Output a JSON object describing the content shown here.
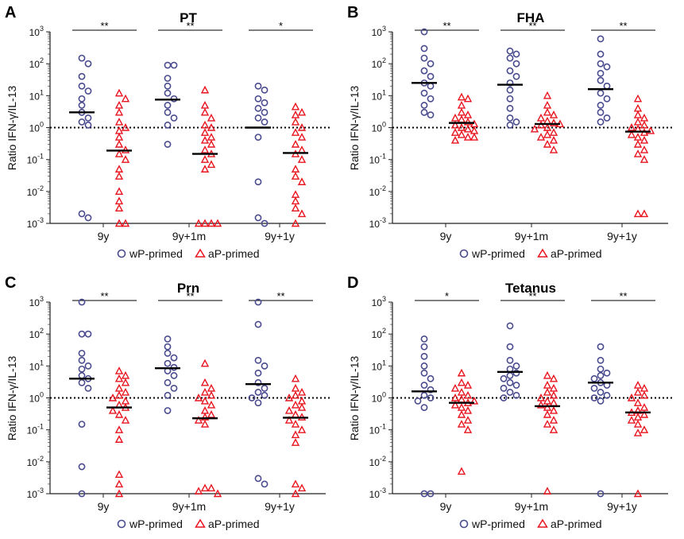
{
  "figure": {
    "y_label": "Ratio IFN-γ/IL-13",
    "legend": {
      "wp_label": "wP-primed",
      "ap_label": "aP-primed"
    },
    "colors": {
      "wp": "#4a4b8e",
      "ap": "#e8141f",
      "median": "#000000",
      "axis": "#222222"
    },
    "y_ticks": [
      {
        "base": "10",
        "exp": "3"
      },
      {
        "base": "10",
        "exp": "2"
      },
      {
        "base": "10",
        "exp": "1"
      },
      {
        "base": "10",
        "exp": "0"
      },
      {
        "base": "10",
        "exp": "-1"
      },
      {
        "base": "10",
        "exp": "-2"
      },
      {
        "base": "10",
        "exp": "-3"
      }
    ]
  },
  "chart_data": [
    {
      "type": "scatter",
      "panel_letter": "A",
      "title": "PT",
      "ylabel": "Ratio IFN-γ/IL-13",
      "yscale": "log",
      "ylim": [
        0.001,
        1000
      ],
      "reference_line": 1,
      "categories": [
        "9y",
        "9y+1m",
        "9y+1y"
      ],
      "significance": [
        "**",
        "**",
        "*"
      ],
      "series": [
        {
          "name": "wP-primed",
          "medians": [
            3.0,
            7.5,
            1.0
          ],
          "points": [
            [
              150,
              100,
              40,
              20,
              14,
              8,
              5,
              3,
              2,
              1.5,
              1.2,
              0.002,
              0.0015
            ],
            [
              90,
              90,
              35,
              20,
              12,
              8,
              5,
              3,
              2,
              1.2,
              0.3
            ],
            [
              20,
              15,
              8,
              6,
              4,
              3,
              2,
              1.5,
              0.5,
              0.02,
              0.0015,
              0.001
            ]
          ]
        },
        {
          "name": "aP-primed",
          "medians": [
            0.19,
            0.15,
            0.16
          ],
          "points": [
            [
              12,
              8,
              5,
              3,
              1.5,
              1,
              0.8,
              0.5,
              0.3,
              0.2,
              0.15,
              0.1,
              0.05,
              0.03,
              0.01,
              0.005,
              0.003,
              0.001,
              0.001
            ],
            [
              15,
              5,
              3,
              2,
              1.2,
              1,
              0.7,
              0.5,
              0.4,
              0.3,
              0.2,
              0.15,
              0.1,
              0.07,
              0.05,
              0.001,
              0.001,
              0.001,
              0.001
            ],
            [
              4.5,
              3,
              2.5,
              1.5,
              1,
              0.7,
              0.5,
              0.3,
              0.2,
              0.15,
              0.1,
              0.05,
              0.03,
              0.02,
              0.008,
              0.005,
              0.003,
              0.002,
              0.001
            ]
          ]
        }
      ]
    },
    {
      "type": "scatter",
      "panel_letter": "B",
      "title": "FHA",
      "ylabel": "Ratio IFN-γ/IL-13",
      "yscale": "log",
      "ylim": [
        0.001,
        1000
      ],
      "reference_line": 1,
      "categories": [
        "9y",
        "9y+1m",
        "9y+1y"
      ],
      "significance": [
        "**",
        "**",
        "**"
      ],
      "series": [
        {
          "name": "wP-primed",
          "medians": [
            25,
            22,
            16
          ],
          "points": [
            [
              1000,
              300,
              150,
              100,
              60,
              40,
              25,
              20,
              12,
              8,
              5,
              3,
              2.5
            ],
            [
              250,
              200,
              150,
              100,
              60,
              40,
              25,
              15,
              8,
              4,
              2,
              1.5,
              1.2
            ],
            [
              600,
              200,
              100,
              80,
              50,
              30,
              20,
              12,
              8,
              5,
              3,
              2,
              1.5
            ]
          ]
        },
        {
          "name": "aP-primed",
          "medians": [
            1.4,
            1.3,
            0.75
          ],
          "points": [
            [
              9,
              8,
              5,
              3,
              2.5,
              2,
              1.8,
              1.5,
              1.3,
              1.2,
              1,
              0.9,
              0.8,
              0.7,
              0.6,
              0.5,
              0.5,
              0.4
            ],
            [
              10,
              5,
              3,
              2.5,
              2,
              1.6,
              1.4,
              1.3,
              1.2,
              1,
              0.9,
              0.7,
              0.6,
              0.5,
              0.4,
              0.3,
              0.2
            ],
            [
              8,
              4,
              2.5,
              2,
              1.5,
              1.2,
              1,
              0.9,
              0.8,
              0.7,
              0.6,
              0.5,
              0.4,
              0.3,
              0.2,
              0.15,
              0.1,
              0.002,
              0.002
            ]
          ]
        }
      ]
    },
    {
      "type": "scatter",
      "panel_letter": "C",
      "title": "Prn",
      "ylabel": "Ratio IFN-γ/IL-13",
      "yscale": "log",
      "ylim": [
        0.001,
        1000
      ],
      "reference_line": 1,
      "categories": [
        "9y",
        "9y+1m",
        "9y+1y"
      ],
      "significance": [
        "**",
        "**",
        "**"
      ],
      "series": [
        {
          "name": "wP-primed",
          "medians": [
            4.0,
            8.5,
            2.7
          ],
          "points": [
            [
              1000,
              100,
              100,
              25,
              15,
              10,
              8,
              5,
              4,
              3,
              2,
              0.15,
              0.007,
              0.001
            ],
            [
              70,
              40,
              25,
              18,
              12,
              9,
              7,
              5,
              3,
              2,
              1.2,
              0.4
            ],
            [
              1000,
              200,
              15,
              10,
              6,
              3,
              2,
              1.5,
              1.2,
              1,
              0.7,
              0.003,
              0.002
            ]
          ]
        },
        {
          "name": "aP-primed",
          "medians": [
            0.5,
            0.23,
            0.24
          ],
          "points": [
            [
              7,
              5,
              4,
              3,
              2,
              1.5,
              1.2,
              1,
              0.8,
              0.6,
              0.5,
              0.4,
              0.3,
              0.2,
              0.1,
              0.05,
              0.004,
              0.002,
              0.001
            ],
            [
              12,
              3,
              2,
              1.5,
              1.2,
              1,
              0.8,
              0.6,
              0.4,
              0.3,
              0.25,
              0.2,
              0.15,
              0.0015,
              0.0015,
              0.0012,
              0.001
            ],
            [
              4,
              2,
              1.5,
              1.2,
              1,
              0.8,
              0.6,
              0.5,
              0.4,
              0.3,
              0.25,
              0.2,
              0.15,
              0.1,
              0.07,
              0.04,
              0.002,
              0.0015,
              0.001
            ]
          ]
        }
      ]
    },
    {
      "type": "scatter",
      "panel_letter": "D",
      "title": "Tetanus",
      "ylabel": "Ratio IFN-γ/IL-13",
      "yscale": "log",
      "ylim": [
        0.001,
        1000
      ],
      "reference_line": 1,
      "categories": [
        "9y",
        "9y+1m",
        "9y+1y"
      ],
      "significance": [
        "*",
        "**",
        "**"
      ],
      "series": [
        {
          "name": "wP-primed",
          "medians": [
            1.6,
            6.5,
            3.0
          ],
          "points": [
            [
              70,
              40,
              20,
              10,
              6,
              4,
              2.5,
              1.8,
              1.2,
              1,
              0.8,
              0.5,
              0.001,
              0.001
            ],
            [
              180,
              40,
              15,
              10,
              8,
              6,
              5,
              4,
              3,
              2.5,
              2,
              1.5,
              1.2,
              1
            ],
            [
              40,
              15,
              8,
              6,
              5,
              4,
              3,
              2.5,
              2,
              1.5,
              1.2,
              1,
              0.8,
              0.001
            ]
          ]
        },
        {
          "name": "aP-primed",
          "medians": [
            0.7,
            0.55,
            0.35
          ],
          "points": [
            [
              6,
              3,
              2.5,
              2,
              1.5,
              1.2,
              1,
              0.9,
              0.8,
              0.7,
              0.6,
              0.5,
              0.4,
              0.3,
              0.2,
              0.15,
              0.1,
              0.005
            ],
            [
              5,
              4,
              2.5,
              2,
              1.5,
              1.2,
              1,
              0.8,
              0.7,
              0.6,
              0.5,
              0.4,
              0.3,
              0.2,
              0.15,
              0.1,
              0.0012
            ],
            [
              2.5,
              2,
              1.5,
              1.2,
              1,
              0.7,
              0.5,
              0.4,
              0.35,
              0.3,
              0.25,
              0.2,
              0.15,
              0.1,
              0.08,
              0.001
            ]
          ]
        }
      ]
    }
  ]
}
